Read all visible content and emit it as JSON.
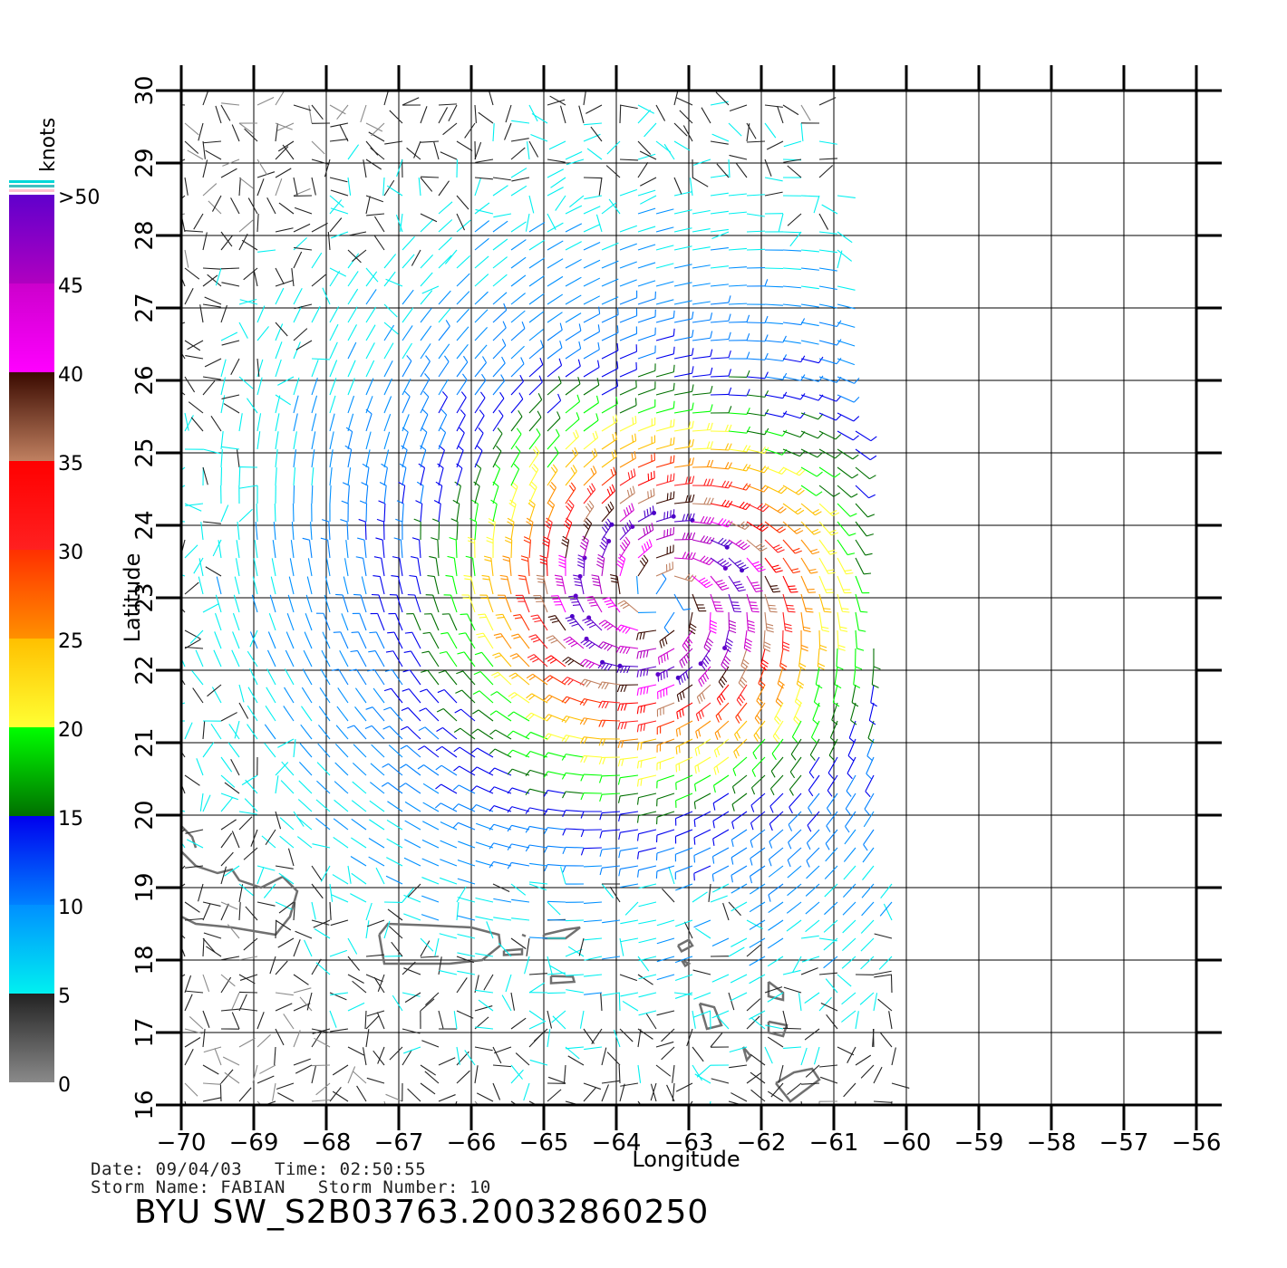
{
  "metadata": {
    "date_label": "Date:",
    "date": "09/04/03",
    "time_label": "Time:",
    "time": "02:50:55",
    "storm_name_label": "Storm Name:",
    "storm_name": "FABIAN",
    "storm_number_label": "Storm Number:",
    "storm_number": "10",
    "file_id": "BYU  SW_S2B03763.20032860250"
  },
  "axes": {
    "xlabel": "Longitude",
    "ylabel": "Latitude",
    "xlim": [
      -70,
      -56
    ],
    "ylim": [
      16,
      30
    ],
    "xticks": [
      "−70",
      "−69",
      "−68",
      "−67",
      "−66",
      "−65",
      "−64",
      "−63",
      "−62",
      "−61",
      "−60",
      "−59",
      "−58",
      "−57",
      "−56"
    ],
    "yticks": [
      "16",
      "17",
      "18",
      "19",
      "20",
      "21",
      "22",
      "23",
      "24",
      "25",
      "26",
      "27",
      "28",
      "29",
      "30"
    ]
  },
  "colorbar": {
    "unit": "knots",
    "labels": [
      "0",
      "5",
      "10",
      "15",
      "20",
      "25",
      "30",
      "35",
      "40",
      "45",
      ">50"
    ],
    "bands": [
      {
        "from": 0,
        "to": 5,
        "colors": [
          "#8a8a8a",
          "#222222"
        ]
      },
      {
        "from": 5,
        "to": 10,
        "colors": [
          "#00f0f0",
          "#0090ff"
        ]
      },
      {
        "from": 10,
        "to": 15,
        "colors": [
          "#0080ff",
          "#0000ee"
        ]
      },
      {
        "from": 15,
        "to": 20,
        "colors": [
          "#007000",
          "#00ff00"
        ]
      },
      {
        "from": 20,
        "to": 25,
        "colors": [
          "#ffff33",
          "#ffc000"
        ]
      },
      {
        "from": 25,
        "to": 30,
        "colors": [
          "#ff9000",
          "#ff3000"
        ]
      },
      {
        "from": 30,
        "to": 35,
        "colors": [
          "#ff2020",
          "#ff0000"
        ]
      },
      {
        "from": 35,
        "to": 40,
        "colors": [
          "#c08060",
          "#3a0a00"
        ]
      },
      {
        "from": 40,
        "to": 45,
        "colors": [
          "#ff00ff",
          "#cc00cc"
        ]
      },
      {
        "from": 45,
        "to": 50,
        "colors": [
          "#b000c0",
          "#6000cc"
        ]
      }
    ]
  },
  "storm": {
    "center_lon": -63.4,
    "center_lat": 23.0,
    "max_wind_knots": 52
  },
  "swath": {
    "corners": [
      [
        -70,
        30
      ],
      [
        -61.0,
        30
      ],
      [
        -59.9,
        16
      ],
      [
        -70,
        16
      ]
    ]
  }
}
